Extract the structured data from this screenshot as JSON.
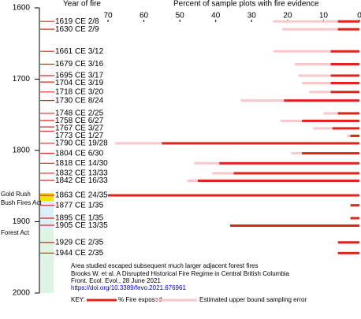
{
  "chart_data": {
    "type": "fire-timeline",
    "y_label": "Year of fire",
    "x_label": "Percent of sample plots with fire evidence",
    "ylim": [
      1600,
      2000
    ],
    "yticks": [
      1600,
      1700,
      1800,
      1900,
      2000
    ],
    "xlim": [
      70,
      0
    ],
    "xticks": [
      70,
      60,
      50,
      40,
      30,
      20,
      10,
      0
    ],
    "years": [
      1619,
      1630,
      1661,
      1679,
      1695,
      1704,
      1718,
      1730,
      1748,
      1758,
      1767,
      1773,
      1790,
      1804,
      1818,
      1832,
      1842,
      1863,
      1877,
      1895,
      1905,
      1929,
      1944
    ],
    "categories": [
      "1619 CE  2/8",
      "1630 CE  2/9",
      "1661 CE  3/12",
      "1679 CE  3/16",
      "1695 CE  3/17",
      "1704 CE  3/19",
      "1718 CE  3/20",
      "1730 CE  8/24",
      "1748 CE  2/25",
      "1758 CE  6/27",
      "1767 CE  3/27",
      "1773 CE  1/27",
      "1790 CE 19/28",
      "1804 CE  6/30",
      "1818 CE  14/30",
      "1832 CE  13/33",
      "1842 CE  16/33",
      "1863 CE  24/35",
      "1877 CE  1/35",
      "1895 CE  1/35",
      "1905 CE  13/35",
      "1929 CE  2/35",
      "1944 CE  2/35"
    ],
    "series": [
      {
        "name": "% Fire exposed",
        "color": "#e0241b",
        "values": [
          6,
          6,
          8,
          8,
          8,
          8,
          8,
          21,
          6,
          16,
          7.5,
          2.5,
          55,
          16,
          39,
          35,
          45,
          70,
          2.5,
          2.5,
          36,
          6,
          6
        ]
      },
      {
        "name": "Estimated upper bound sampling error",
        "color": "#f8c8cc",
        "values": [
          24,
          21.5,
          24,
          18,
          17,
          16,
          14,
          33,
          10,
          22,
          13,
          3.5,
          68,
          19,
          46,
          41,
          48,
          null,
          null,
          null,
          null,
          null,
          null
        ]
      }
    ],
    "annotations": [
      "Gold Rush",
      "Bush Fires Act",
      "Forest Act"
    ],
    "notes": [
      "Area studied escaped subsequent much larger adjacent forest fires",
      "Brooks W. et al. A Disrupted Historical Fire Regime in Central British Columbia",
      "Front. Ecol. Evol., 28 June 2021",
      "https://doi.org/10.3389/fevo.2021.676961"
    ],
    "legend_title": "KEY:"
  }
}
